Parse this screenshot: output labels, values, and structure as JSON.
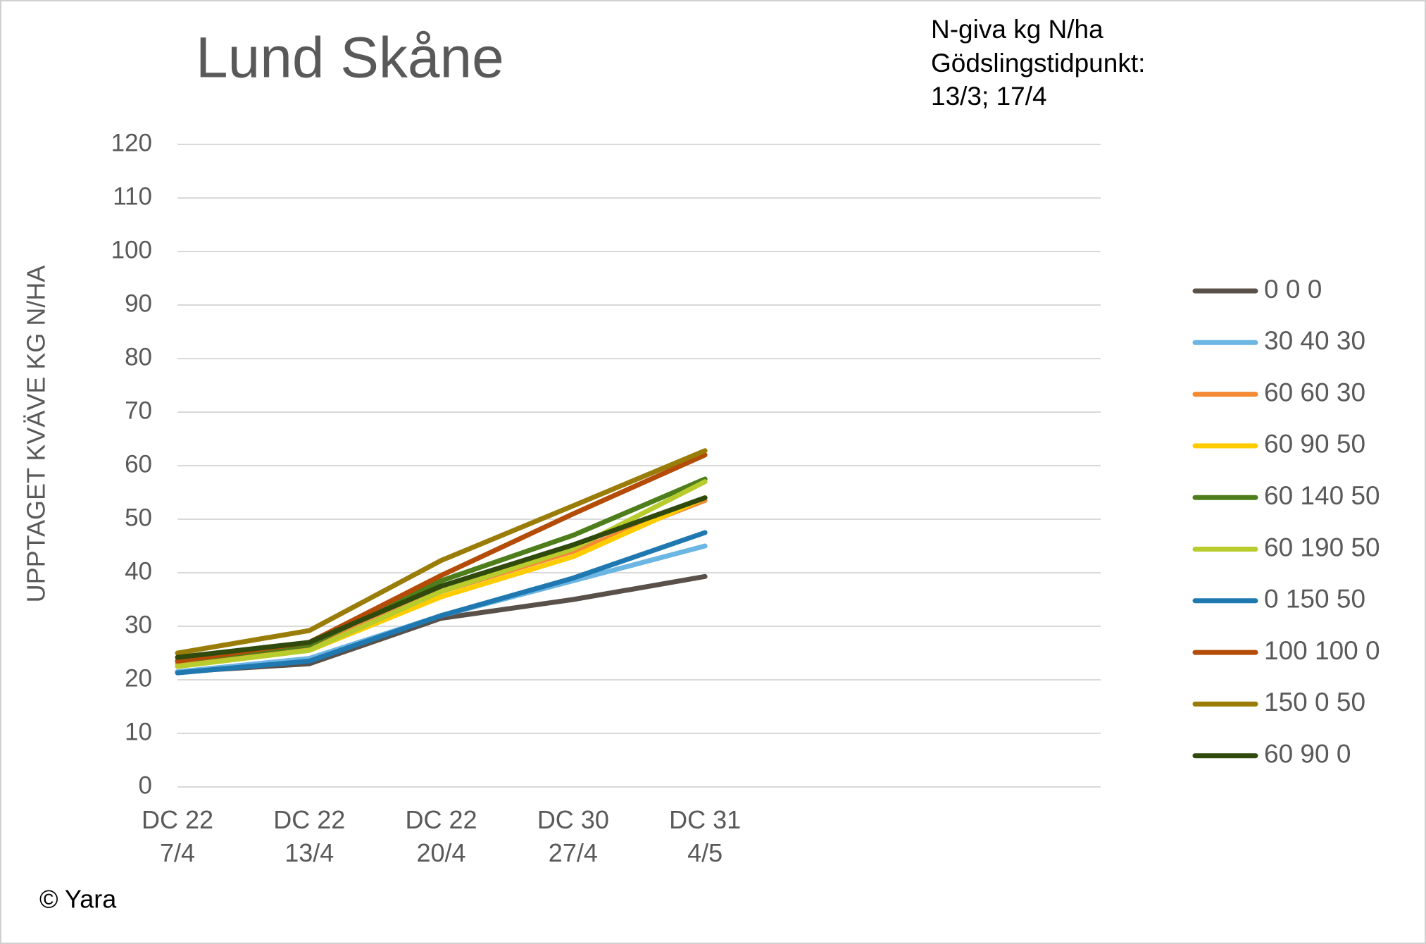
{
  "chart_data": {
    "type": "line",
    "title": "Lund Skåne",
    "annotations": [
      "N-giva kg N/ha",
      "Gödslingstidpunkt:",
      "13/3; 17/4"
    ],
    "y_label": "UPPTAGET KVÄVE KG N/HA",
    "footer": "© Yara",
    "categories": [
      "DC 22\n7/4",
      "DC 22\n13/4",
      "DC 22\n20/4",
      "DC 30\n27/4",
      "DC 31\n4/5",
      null,
      null,
      null
    ],
    "ylim": [
      0,
      120
    ],
    "yticks": [
      0,
      10,
      20,
      30,
      40,
      50,
      60,
      70,
      80,
      90,
      100,
      110,
      120
    ],
    "grid": true,
    "legend": "right",
    "series": [
      {
        "name": "0 0 0",
        "color": "#595049",
        "values": [
          21.5,
          23,
          31.5,
          35,
          39.3,
          null,
          null,
          null
        ]
      },
      {
        "name": "30 40 30",
        "color": "#6cb6e4",
        "values": [
          21.5,
          24,
          32,
          38.5,
          45,
          null,
          null,
          null
        ]
      },
      {
        "name": "60 60 30",
        "color": "#f58a35",
        "values": [
          23,
          26,
          36.5,
          44,
          53.5,
          null,
          null,
          null
        ]
      },
      {
        "name": "60 90 50",
        "color": "#ffcc00",
        "values": [
          22.5,
          25.5,
          35.5,
          43,
          54,
          null,
          null,
          null
        ]
      },
      {
        "name": "60 140 50",
        "color": "#4e7e1b",
        "values": [
          23.5,
          26.5,
          38.5,
          47,
          57.5,
          null,
          null,
          null
        ]
      },
      {
        "name": "60 190 50",
        "color": "#b8cc2e",
        "values": [
          22.5,
          25.5,
          36.5,
          44.5,
          57,
          null,
          null,
          null
        ]
      },
      {
        "name": "0 150 50",
        "color": "#1f78b0",
        "values": [
          21.3,
          23.5,
          32,
          39,
          47.5,
          null,
          null,
          null
        ]
      },
      {
        "name": "100 100 0",
        "color": "#b44c07",
        "values": [
          23.5,
          27,
          39.5,
          51,
          62,
          null,
          null,
          null
        ]
      },
      {
        "name": "150 0 50",
        "color": "#9a7d08",
        "values": [
          25,
          29.2,
          42.3,
          52.5,
          62.8,
          null,
          null,
          null
        ]
      },
      {
        "name": "60 90 0",
        "color": "#2f4a0c",
        "values": [
          24.2,
          27,
          37.5,
          45.2,
          54,
          null,
          null,
          null
        ]
      }
    ]
  }
}
